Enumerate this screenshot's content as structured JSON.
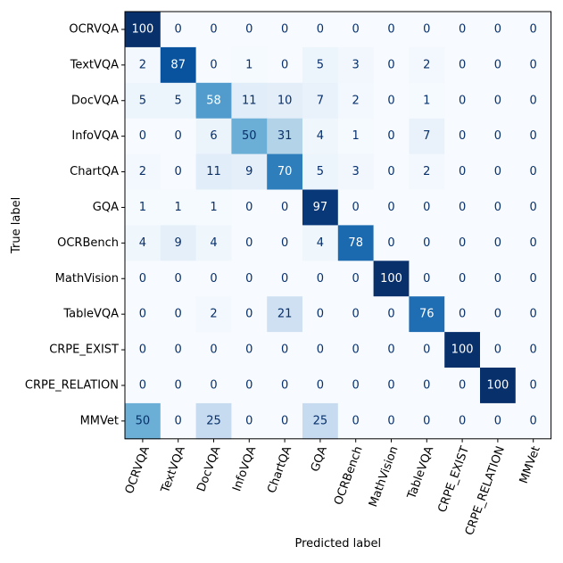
{
  "chart_data": {
    "type": "heatmap",
    "title": "",
    "xlabel": "Predicted label",
    "ylabel": "True label",
    "colormap": "Blues",
    "value_range": [
      0,
      100
    ],
    "row_labels": [
      "OCRVQA",
      "TextVQA",
      "DocVQA",
      "InfoVQA",
      "ChartQA",
      "GQA",
      "OCRBench",
      "MathVision",
      "TableVQA",
      "CRPE_EXIST",
      "CRPE_RELATION",
      "MMVet"
    ],
    "col_labels": [
      "OCRVQA",
      "TextVQA",
      "DocVQA",
      "InfoVQA",
      "ChartQA",
      "GQA",
      "OCRBench",
      "MathVision",
      "TableVQA",
      "CRPE_EXIST",
      "CRPE_RELATION",
      "MMVet"
    ],
    "matrix": [
      [
        100,
        0,
        0,
        0,
        0,
        0,
        0,
        0,
        0,
        0,
        0,
        0
      ],
      [
        2,
        87,
        0,
        1,
        0,
        5,
        3,
        0,
        2,
        0,
        0,
        0
      ],
      [
        5,
        5,
        58,
        11,
        10,
        7,
        2,
        0,
        1,
        0,
        0,
        0
      ],
      [
        0,
        0,
        6,
        50,
        31,
        4,
        1,
        0,
        7,
        0,
        0,
        0
      ],
      [
        2,
        0,
        11,
        9,
        70,
        5,
        3,
        0,
        2,
        0,
        0,
        0
      ],
      [
        1,
        1,
        1,
        0,
        0,
        97,
        0,
        0,
        0,
        0,
        0,
        0
      ],
      [
        4,
        9,
        4,
        0,
        0,
        4,
        78,
        0,
        0,
        0,
        0,
        0
      ],
      [
        0,
        0,
        0,
        0,
        0,
        0,
        0,
        100,
        0,
        0,
        0,
        0
      ],
      [
        0,
        0,
        2,
        0,
        21,
        0,
        0,
        0,
        76,
        0,
        0,
        0
      ],
      [
        0,
        0,
        0,
        0,
        0,
        0,
        0,
        0,
        0,
        100,
        0,
        0
      ],
      [
        0,
        0,
        0,
        0,
        0,
        0,
        0,
        0,
        0,
        0,
        100,
        0
      ],
      [
        50,
        0,
        25,
        0,
        0,
        25,
        0,
        0,
        0,
        0,
        0,
        0
      ]
    ]
  }
}
